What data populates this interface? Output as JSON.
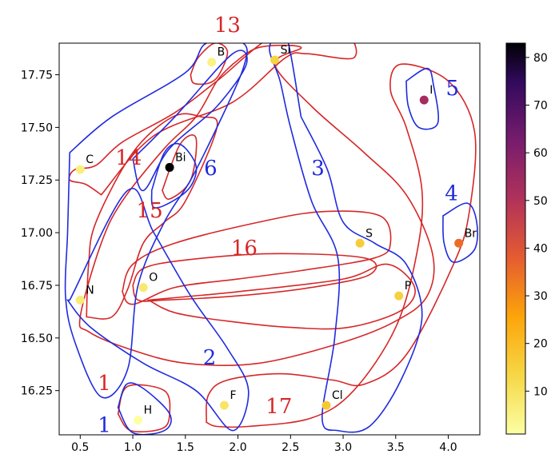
{
  "chart_data": {
    "type": "scatter",
    "title": "",
    "xlabel": "",
    "ylabel": "",
    "xlim": [
      0.3,
      4.3
    ],
    "ylim": [
      16.04,
      17.9
    ],
    "x_ticks": [
      0.5,
      1.0,
      1.5,
      2.0,
      2.5,
      3.0,
      3.5,
      4.0
    ],
    "x_tick_labels": [
      "0.5",
      "1.0",
      "1.5",
      "2.0",
      "2.5",
      "3.0",
      "3.5",
      "4.0"
    ],
    "y_ticks": [
      16.25,
      16.5,
      16.75,
      17.0,
      17.25,
      17.5,
      17.75
    ],
    "y_tick_labels": [
      "16.25",
      "16.50",
      "16.75",
      "17.00",
      "17.25",
      "17.50",
      "17.75"
    ],
    "grid": false,
    "colorbar": {
      "colormap": "inferno_r",
      "range": [
        1,
        83
      ],
      "ticks": [
        10,
        20,
        30,
        40,
        50,
        60,
        70,
        80
      ],
      "tick_labels": [
        "10",
        "20",
        "30",
        "40",
        "50",
        "60",
        "70",
        "80"
      ]
    },
    "points": [
      {
        "label": "H",
        "x": 1.05,
        "y": 16.11,
        "value": 1
      },
      {
        "label": "B",
        "x": 1.75,
        "y": 17.81,
        "value": 5
      },
      {
        "label": "Si",
        "x": 2.35,
        "y": 17.82,
        "value": 14
      },
      {
        "label": "I",
        "x": 3.77,
        "y": 17.63,
        "value": 53
      },
      {
        "label": "C",
        "x": 0.5,
        "y": 17.3,
        "value": 6
      },
      {
        "label": "Bi",
        "x": 1.35,
        "y": 17.31,
        "value": 83
      },
      {
        "label": "S",
        "x": 3.16,
        "y": 16.95,
        "value": 16
      },
      {
        "label": "Br",
        "x": 4.1,
        "y": 16.95,
        "value": 35
      },
      {
        "label": "O",
        "x": 1.1,
        "y": 16.74,
        "value": 8
      },
      {
        "label": "N",
        "x": 0.5,
        "y": 16.68,
        "value": 7
      },
      {
        "label": "P",
        "x": 3.53,
        "y": 16.7,
        "value": 15
      },
      {
        "label": "F",
        "x": 1.87,
        "y": 16.18,
        "value": 9
      },
      {
        "label": "Cl",
        "x": 2.84,
        "y": 16.18,
        "value": 17
      }
    ],
    "group_labels": [
      {
        "text": "13",
        "color": "#d62728",
        "x": 1.9,
        "y": 17.98
      },
      {
        "text": "14",
        "color": "#d62728",
        "x": 0.96,
        "y": 17.35
      },
      {
        "text": "15",
        "color": "#d62728",
        "x": 1.16,
        "y": 17.1
      },
      {
        "text": "16",
        "color": "#d62728",
        "x": 2.06,
        "y": 16.92
      },
      {
        "text": "17",
        "color": "#d62728",
        "x": 2.39,
        "y": 16.17
      },
      {
        "text": "1",
        "color": "#d62728",
        "x": 0.73,
        "y": 16.28
      },
      {
        "text": "5",
        "color": "#1f2bde",
        "x": 4.04,
        "y": 17.68
      },
      {
        "text": "6",
        "color": "#1f2bde",
        "x": 1.74,
        "y": 17.3
      },
      {
        "text": "3",
        "color": "#1f2bde",
        "x": 2.76,
        "y": 17.3
      },
      {
        "text": "4",
        "color": "#1f2bde",
        "x": 4.03,
        "y": 17.18
      },
      {
        "text": "2",
        "color": "#1f2bde",
        "x": 1.73,
        "y": 16.4
      },
      {
        "text": "1",
        "color": "#1f2bde",
        "x": 0.73,
        "y": 16.08
      }
    ],
    "outlines": [
      {
        "group": "13",
        "color": "#d62728",
        "path": [
          [
            1.55,
            17.75
          ],
          [
            1.62,
            17.83
          ],
          [
            1.78,
            17.9
          ],
          [
            1.9,
            17.86
          ],
          [
            1.82,
            17.75
          ],
          [
            1.72,
            17.71
          ],
          [
            1.58,
            17.71
          ],
          [
            1.55,
            17.75
          ]
        ]
      },
      {
        "group": "13",
        "color": "#d62728",
        "path": [
          [
            0.7,
            17.18
          ],
          [
            1.2,
            17.46
          ],
          [
            1.95,
            17.62
          ],
          [
            2.45,
            17.83
          ],
          [
            2.65,
            17.85
          ],
          [
            3.1,
            17.83
          ],
          [
            3.0,
            17.95
          ],
          [
            2.4,
            17.95
          ],
          [
            1.8,
            17.72
          ],
          [
            1.4,
            17.57
          ],
          [
            0.9,
            17.43
          ],
          [
            0.65,
            17.32
          ],
          [
            0.45,
            17.3
          ],
          [
            0.4,
            17.25
          ],
          [
            0.55,
            17.23
          ],
          [
            0.7,
            17.18
          ]
        ]
      },
      {
        "group": "14",
        "color": "#d62728",
        "path": [
          [
            1.95,
            17.8
          ],
          [
            1.8,
            17.72
          ],
          [
            1.6,
            17.55
          ],
          [
            1.3,
            17.4
          ],
          [
            0.9,
            17.15
          ],
          [
            0.7,
            16.95
          ],
          [
            0.5,
            16.6
          ],
          [
            0.58,
            16.53
          ],
          [
            0.95,
            16.45
          ],
          [
            1.5,
            16.38
          ],
          [
            2.2,
            16.38
          ],
          [
            3.0,
            16.48
          ],
          [
            3.5,
            16.58
          ],
          [
            3.8,
            16.7
          ],
          [
            3.85,
            16.9
          ],
          [
            3.6,
            17.18
          ],
          [
            3.2,
            17.38
          ],
          [
            2.7,
            17.6
          ],
          [
            2.35,
            17.8
          ],
          [
            2.6,
            17.88
          ],
          [
            2.2,
            17.88
          ],
          [
            1.95,
            17.8
          ]
        ]
      },
      {
        "group": "15",
        "color": "#d62728",
        "path": [
          [
            0.56,
            16.6
          ],
          [
            0.58,
            16.85
          ],
          [
            0.65,
            17.05
          ],
          [
            1.0,
            17.38
          ],
          [
            1.38,
            17.55
          ],
          [
            1.65,
            17.55
          ],
          [
            1.8,
            17.5
          ],
          [
            1.5,
            17.15
          ],
          [
            1.3,
            17.05
          ],
          [
            1.1,
            16.95
          ],
          [
            0.95,
            16.73
          ],
          [
            0.8,
            16.6
          ],
          [
            0.56,
            16.6
          ]
        ]
      },
      {
        "group": "15",
        "color": "#d62728",
        "path": [
          [
            1.28,
            17.2
          ],
          [
            1.45,
            17.42
          ],
          [
            1.6,
            17.45
          ],
          [
            1.55,
            17.25
          ],
          [
            1.35,
            17.16
          ],
          [
            1.28,
            17.2
          ]
        ]
      },
      {
        "group": "16",
        "color": "#d62728",
        "path": [
          [
            0.9,
            16.72
          ],
          [
            1.0,
            16.85
          ],
          [
            1.4,
            16.95
          ],
          [
            2.2,
            17.05
          ],
          [
            2.8,
            17.1
          ],
          [
            3.35,
            17.08
          ],
          [
            3.45,
            16.95
          ],
          [
            3.3,
            16.88
          ],
          [
            2.6,
            16.82
          ],
          [
            2.0,
            16.78
          ],
          [
            1.4,
            16.74
          ],
          [
            1.0,
            16.66
          ],
          [
            0.9,
            16.72
          ]
        ]
      },
      {
        "group": "16",
        "color": "#d62728",
        "path": [
          [
            1.0,
            16.75
          ],
          [
            1.1,
            16.83
          ],
          [
            1.5,
            16.87
          ],
          [
            2.3,
            16.9
          ],
          [
            3.2,
            16.88
          ],
          [
            3.25,
            16.8
          ],
          [
            2.7,
            16.74
          ],
          [
            2.0,
            16.7
          ],
          [
            1.3,
            16.68
          ],
          [
            1.05,
            16.68
          ],
          [
            1.0,
            16.75
          ]
        ]
      },
      {
        "group": "16",
        "color": "#d62728",
        "path": [
          [
            1.15,
            16.68
          ],
          [
            2.0,
            16.72
          ],
          [
            3.0,
            16.78
          ],
          [
            3.42,
            16.85
          ],
          [
            3.68,
            16.74
          ],
          [
            3.55,
            16.63
          ],
          [
            3.05,
            16.55
          ],
          [
            2.5,
            16.55
          ],
          [
            1.9,
            16.58
          ],
          [
            1.4,
            16.62
          ],
          [
            1.15,
            16.68
          ]
        ]
      },
      {
        "group": "17",
        "color": "#d62728",
        "path": [
          [
            1.7,
            16.1
          ],
          [
            1.72,
            16.23
          ],
          [
            1.9,
            16.3
          ],
          [
            2.4,
            16.33
          ],
          [
            2.9,
            16.3
          ],
          [
            3.2,
            16.28
          ],
          [
            3.6,
            16.42
          ],
          [
            4.05,
            16.85
          ],
          [
            4.2,
            17.1
          ],
          [
            4.25,
            17.48
          ],
          [
            4.0,
            17.72
          ],
          [
            3.55,
            17.8
          ],
          [
            3.45,
            17.68
          ],
          [
            3.6,
            17.5
          ],
          [
            3.75,
            17.2
          ],
          [
            3.7,
            16.9
          ],
          [
            3.5,
            16.55
          ],
          [
            3.1,
            16.25
          ],
          [
            2.7,
            16.12
          ],
          [
            2.1,
            16.08
          ],
          [
            1.8,
            16.08
          ],
          [
            1.7,
            16.1
          ]
        ]
      },
      {
        "group": "1",
        "color": "#d62728",
        "path": [
          [
            0.86,
            16.14
          ],
          [
            0.95,
            16.27
          ],
          [
            1.3,
            16.25
          ],
          [
            1.35,
            16.14
          ],
          [
            1.28,
            16.07
          ],
          [
            0.98,
            16.06
          ],
          [
            0.86,
            16.14
          ]
        ]
      },
      {
        "group": "1",
        "color": "#1f2bde",
        "path": [
          [
            0.86,
            16.17
          ],
          [
            0.94,
            16.28
          ],
          [
            1.1,
            16.26
          ],
          [
            1.35,
            16.14
          ],
          [
            1.3,
            16.06
          ],
          [
            1.0,
            16.05
          ],
          [
            0.86,
            16.17
          ]
        ]
      },
      {
        "group": "2",
        "color": "#1f2bde",
        "path": [
          [
            0.4,
            17.38
          ],
          [
            0.8,
            17.55
          ],
          [
            1.5,
            17.76
          ],
          [
            1.7,
            17.9
          ],
          [
            2.05,
            17.9
          ],
          [
            2.05,
            17.78
          ],
          [
            1.8,
            17.5
          ],
          [
            1.55,
            17.25
          ],
          [
            1.3,
            17.05
          ],
          [
            1.05,
            16.75
          ],
          [
            0.95,
            16.35
          ],
          [
            0.7,
            16.22
          ],
          [
            0.45,
            16.48
          ],
          [
            0.36,
            16.7
          ],
          [
            0.38,
            17.0
          ],
          [
            0.4,
            17.38
          ]
        ]
      },
      {
        "group": "2",
        "color": "#1f2bde",
        "path": [
          [
            1.0,
            17.35
          ],
          [
            1.4,
            17.55
          ],
          [
            1.95,
            17.85
          ],
          [
            2.08,
            17.8
          ],
          [
            1.8,
            17.6
          ],
          [
            1.35,
            17.4
          ],
          [
            1.1,
            17.2
          ],
          [
            1.0,
            17.35
          ]
        ]
      },
      {
        "group": "2",
        "color": "#1f2bde",
        "path": [
          [
            0.38,
            16.68
          ],
          [
            0.6,
            16.55
          ],
          [
            1.1,
            16.38
          ],
          [
            1.6,
            16.25
          ],
          [
            1.95,
            16.06
          ],
          [
            2.1,
            16.25
          ],
          [
            1.9,
            16.45
          ],
          [
            1.55,
            16.7
          ],
          [
            1.2,
            17.0
          ],
          [
            0.95,
            17.2
          ],
          [
            0.4,
            16.68
          ]
        ]
      },
      {
        "group": "3",
        "color": "#1f2bde",
        "path": [
          [
            2.6,
            17.55
          ],
          [
            2.85,
            17.3
          ],
          [
            3.0,
            17.05
          ],
          [
            3.3,
            16.95
          ],
          [
            3.6,
            16.85
          ],
          [
            3.75,
            16.6
          ],
          [
            3.55,
            16.3
          ],
          [
            3.25,
            16.08
          ],
          [
            2.95,
            16.06
          ],
          [
            2.8,
            16.12
          ],
          [
            2.92,
            16.5
          ],
          [
            2.95,
            16.88
          ],
          [
            2.7,
            17.15
          ],
          [
            2.5,
            17.5
          ],
          [
            2.4,
            17.72
          ],
          [
            2.3,
            17.88
          ],
          [
            2.45,
            17.95
          ],
          [
            2.6,
            17.55
          ]
        ]
      },
      {
        "group": "4",
        "color": "#1f2bde",
        "path": [
          [
            3.95,
            17.08
          ],
          [
            4.18,
            17.14
          ],
          [
            4.27,
            17.05
          ],
          [
            4.25,
            16.92
          ],
          [
            4.05,
            16.86
          ],
          [
            3.96,
            16.95
          ],
          [
            3.95,
            17.08
          ]
        ]
      },
      {
        "group": "5",
        "color": "#1f2bde",
        "path": [
          [
            3.6,
            17.72
          ],
          [
            3.8,
            17.78
          ],
          [
            3.86,
            17.7
          ],
          [
            3.9,
            17.52
          ],
          [
            3.72,
            17.5
          ],
          [
            3.62,
            17.6
          ],
          [
            3.6,
            17.72
          ]
        ]
      },
      {
        "group": "6",
        "color": "#1f2bde",
        "path": [
          [
            1.18,
            17.2
          ],
          [
            1.3,
            17.38
          ],
          [
            1.45,
            17.42
          ],
          [
            1.6,
            17.32
          ],
          [
            1.55,
            17.22
          ],
          [
            1.38,
            17.15
          ],
          [
            1.2,
            17.12
          ],
          [
            1.18,
            17.2
          ]
        ]
      }
    ]
  }
}
